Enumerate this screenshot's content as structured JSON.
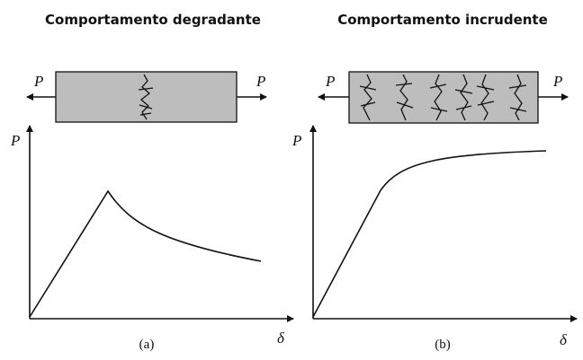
{
  "panels": [
    {
      "title": "Comportamento degradante",
      "left_force": "P",
      "right_force": "P",
      "y_axis_label": "P",
      "x_axis_label": "δ",
      "caption": "(a)"
    },
    {
      "title": "Comportamento incrudente",
      "left_force": "P",
      "right_force": "P",
      "y_axis_label": "P",
      "x_axis_label": "δ",
      "caption": "(b)"
    }
  ]
}
